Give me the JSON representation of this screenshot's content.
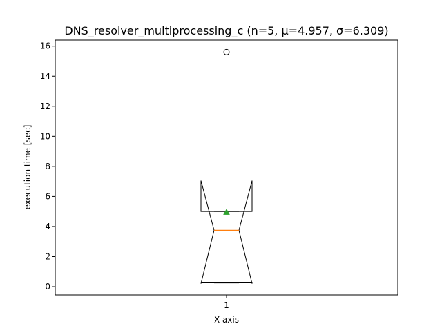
{
  "chart_data": {
    "type": "boxplot",
    "title": "DNS_resolver_multiprocessing_c (n=5, μ=4.957, σ=6.309)",
    "xlabel": "X-axis",
    "ylabel": "execution time [sec]",
    "ylim": [
      -0.55,
      16.4
    ],
    "y_ticks": [
      0,
      2,
      4,
      6,
      8,
      10,
      12,
      14,
      16
    ],
    "x_tick_labels": [
      "1"
    ],
    "notched": true,
    "grid": false,
    "boxes": [
      {
        "category": "1",
        "whisker_low": 0.25,
        "q1": 0.3,
        "median": 3.75,
        "q3": 5.0,
        "whisker_high": 5.0,
        "mean": 4.957,
        "notch_low": 0.2,
        "notch_high": 7.05,
        "outliers": [
          15.6
        ]
      }
    ],
    "colors": {
      "box": "#000000",
      "median": "#ff7f0e",
      "mean": "#2ca02c",
      "outlier": "#000000"
    }
  }
}
